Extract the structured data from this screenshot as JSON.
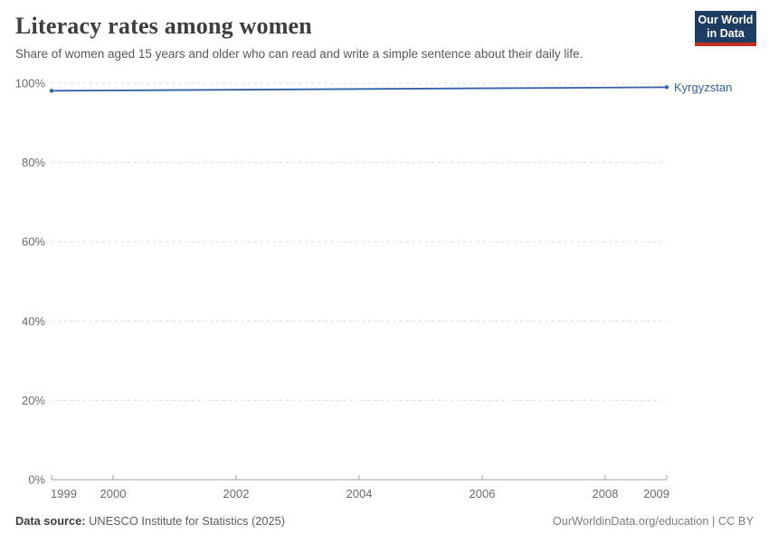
{
  "header": {
    "title": "Literacy rates among women",
    "subtitle": "Share of women aged 15 years and older who can read and write a simple sentence about their daily life.",
    "logo": {
      "line1": "Our World",
      "line2": "in Data",
      "bg_color": "#1d3d63",
      "accent_color": "#c5301f"
    }
  },
  "chart_data": {
    "type": "line",
    "title": "Literacy rates among women",
    "xlabel": "",
    "ylabel": "",
    "xlim": [
      1999,
      2009
    ],
    "ylim": [
      0,
      100
    ],
    "x_ticks": [
      1999,
      2000,
      2002,
      2004,
      2006,
      2008,
      2009
    ],
    "y_ticks": [
      0,
      20,
      40,
      60,
      80,
      100
    ],
    "y_tick_suffix": "%",
    "grid": "horizontal-dashed",
    "legend_position": "end-of-line-label",
    "series": [
      {
        "name": "Kyrgyzstan",
        "color": "#3360a9",
        "x": [
          1999,
          2009
        ],
        "values": [
          98.1,
          99.0
        ]
      }
    ]
  },
  "footer": {
    "data_source_label": "Data source:",
    "data_source_value": "UNESCO Institute for Statistics (2025)",
    "credit": "OurWorldinData.org/education | CC BY"
  }
}
